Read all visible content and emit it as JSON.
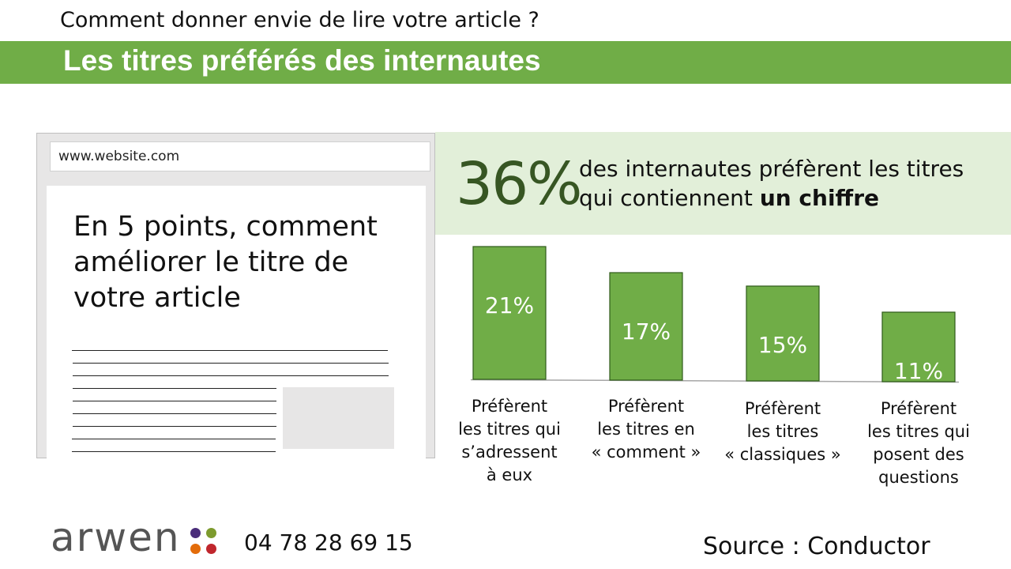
{
  "header": {
    "supertitle": "Comment donner envie de lire votre article ?",
    "title": "Les titres préférés des internautes"
  },
  "browser": {
    "url": "www.website.com",
    "article_heading": "En 5 points, comment améliorer le titre de votre article"
  },
  "stat": {
    "percent": "36%",
    "text": "des internautes préfèrent les titres qui contiennent",
    "text_strong": "un chiffre"
  },
  "chart_data": {
    "type": "bar",
    "categories": [
      "Préfèrent les titres qui s’adressent à eux",
      "Préfèrent les titres en « comment »",
      "Préfèrent les titres « classiques »",
      "Préfèrent les titres qui posent des questions"
    ],
    "category_lines": [
      [
        "Préfèrent",
        "les titres qui",
        "s’adressent",
        "à eux"
      ],
      [
        "Préfèrent",
        "les titres en",
        "« comment »"
      ],
      [
        "Préfèrent",
        "les titres",
        "« classiques »"
      ],
      [
        "Préfèrent",
        "les titres qui",
        "posent des",
        "questions"
      ]
    ],
    "values": [
      21,
      17,
      15,
      11
    ],
    "data_labels": [
      "21%",
      "17%",
      "15%",
      "11%"
    ],
    "ylim": [
      0,
      21
    ],
    "title": "",
    "xlabel": "",
    "ylabel": "",
    "grid": false,
    "colors": {
      "bar": "#70ad47",
      "bar_edge": "#2f5a1a",
      "label": "#ffffff"
    }
  },
  "footer": {
    "brand": "arwen",
    "phone": "04 78 28 69 15",
    "source": "Source : Conductor",
    "dot_colors": [
      "#4a2d7a",
      "#7d9b2e",
      "#e36c0a",
      "#c0262d"
    ]
  },
  "colors": {
    "accent": "#70ad47",
    "panel": "#e2efd9",
    "stat_number": "#375623"
  }
}
